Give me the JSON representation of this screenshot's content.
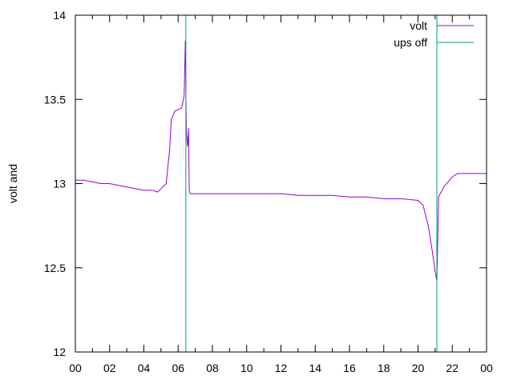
{
  "chart_data": {
    "type": "line",
    "title": "",
    "xlabel": "",
    "ylabel": "volt and",
    "ylim": [
      12,
      14
    ],
    "xlim": [
      0,
      24
    ],
    "x_ticks": [
      "00",
      "02",
      "04",
      "06",
      "08",
      "10",
      "12",
      "14",
      "16",
      "18",
      "20",
      "22",
      "00"
    ],
    "y_ticks": [
      "12",
      "12.5",
      "13",
      "13.5",
      "14"
    ],
    "grid": false,
    "legend": "top-right",
    "series": [
      {
        "name": "volt",
        "color": "#9400d3",
        "x": [
          0,
          0.5,
          1,
          1.5,
          2,
          2.5,
          3,
          3.5,
          4,
          4.5,
          4.8,
          5.0,
          5.3,
          5.5,
          5.6,
          5.8,
          6.0,
          6.2,
          6.35,
          6.42,
          6.48,
          6.55,
          6.6,
          6.65,
          6.7,
          6.75,
          7,
          8,
          9,
          10,
          11,
          12,
          13,
          14,
          15,
          16,
          17,
          18,
          19,
          20,
          20.3,
          20.6,
          20.8,
          21.0,
          21.1,
          21.15,
          21.2,
          21.5,
          22,
          22.3,
          23,
          23.5,
          24
        ],
        "y": [
          13.02,
          13.02,
          13.01,
          13.0,
          13.0,
          12.99,
          12.98,
          12.97,
          12.96,
          12.96,
          12.95,
          12.97,
          13.0,
          13.2,
          13.38,
          13.43,
          13.44,
          13.45,
          13.52,
          13.85,
          13.3,
          13.22,
          13.33,
          12.96,
          12.94,
          12.94,
          12.94,
          12.94,
          12.94,
          12.94,
          12.94,
          12.94,
          12.93,
          12.93,
          12.93,
          12.92,
          12.92,
          12.91,
          12.91,
          12.9,
          12.87,
          12.75,
          12.62,
          12.48,
          12.42,
          12.66,
          12.92,
          12.98,
          13.04,
          13.06,
          13.06,
          13.06,
          13.06
        ]
      },
      {
        "name": "ups off",
        "color": "#009e73",
        "vlines": [
          6.45,
          21.1
        ]
      }
    ]
  }
}
